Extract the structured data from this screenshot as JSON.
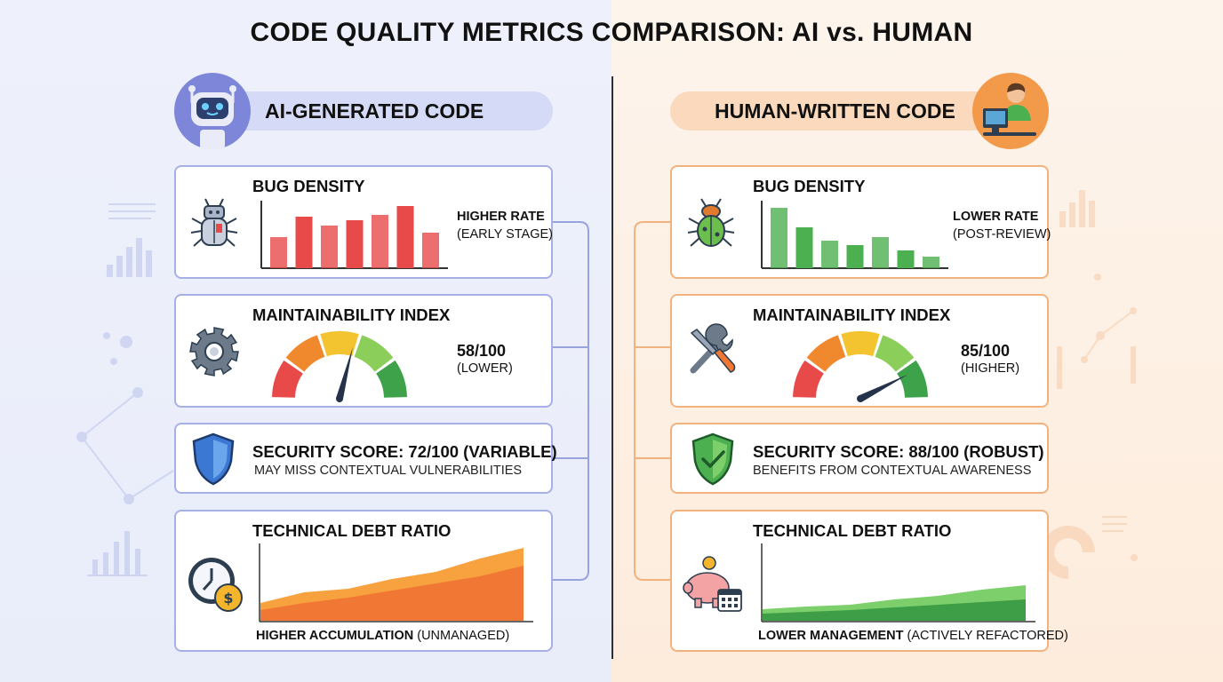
{
  "title": "CODE QUALITY METRICS COMPARISON: AI vs. HUMAN",
  "ai": {
    "header": "AI-GENERATED CODE",
    "bug_density": {
      "title": "BUG DENSITY",
      "label": "HIGHER RATE",
      "sublabel": "(EARLY STAGE)",
      "values": [
        35,
        58,
        48,
        54,
        60,
        70,
        40
      ],
      "color": "#e84a4a"
    },
    "maintainability": {
      "title": "MAINTAINABILITY INDEX",
      "score": "58/100",
      "note": "(LOWER)",
      "value": 58
    },
    "security": {
      "title": "SECURITY SCORE: 72/100 (VARIABLE)",
      "note": "MAY MISS CONTEXTUAL VULNERABILITIES"
    },
    "tech_debt": {
      "title": "TECHNICAL DEBT RATIO",
      "caption_strong": "HIGHER ACCUMULATION",
      "caption_rest": " (UNMANAGED)",
      "upper": [
        20,
        32,
        36,
        47,
        55,
        70,
        82
      ],
      "lower": [
        12,
        20,
        26,
        34,
        42,
        50,
        62
      ]
    }
  },
  "human": {
    "header": "HUMAN-WRITTEN CODE",
    "bug_density": {
      "title": "BUG DENSITY",
      "label": "LOWER RATE",
      "sublabel": "(POST-REVIEW)",
      "values": [
        68,
        46,
        31,
        26,
        35,
        20,
        13
      ],
      "color": "#4caf50"
    },
    "maintainability": {
      "title": "MAINTAINABILITY INDEX",
      "score": "85/100",
      "note": "(HIGHER)",
      "value": 85
    },
    "security": {
      "title": "SECURITY SCORE: 88/100 (ROBUST)",
      "note": "BENEFITS FROM CONTEXTUAL AWARENESS"
    },
    "tech_debt": {
      "title": "TECHNICAL DEBT RATIO",
      "caption_strong": "LOWER MANAGEMENT",
      "caption_rest": " (ACTIVELY REFACTORED)",
      "upper": [
        13,
        16,
        18,
        24,
        28,
        35,
        40
      ],
      "lower": [
        8,
        10,
        12,
        15,
        18,
        21,
        24
      ]
    }
  },
  "icons": {
    "ai_avatar": "robot-icon",
    "human_avatar": "person-at-computer-icon",
    "ai_bug": "robot-bug-icon",
    "human_bug": "beetle-icon",
    "ai_maint": "gear-icon",
    "human_maint": "wrench-screwdriver-icon",
    "ai_security": "shield-icon",
    "human_security": "shield-check-icon",
    "ai_debt": "clock-coin-icon",
    "human_debt": "piggy-bank-calendar-icon"
  }
}
